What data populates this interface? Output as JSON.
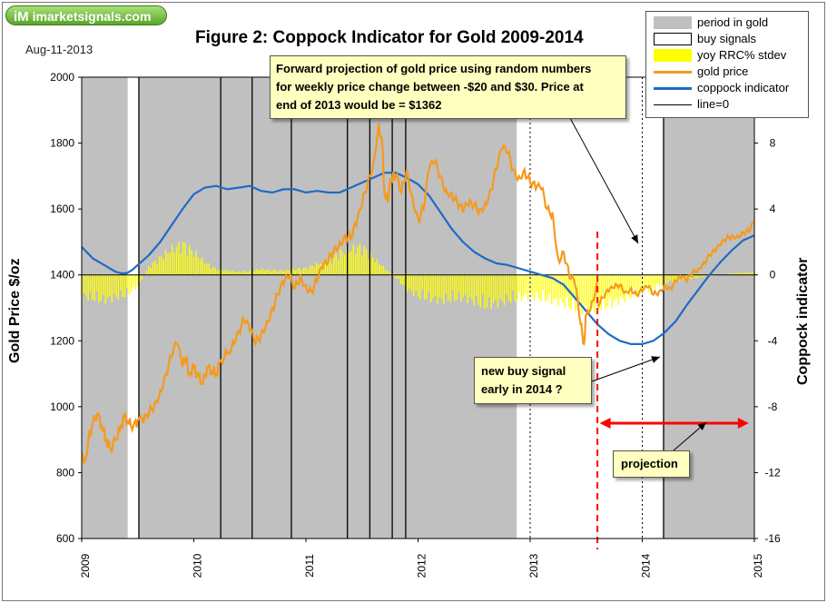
{
  "branding": {
    "logo_text": "imarketsignals.com",
    "logo_mark": "iM"
  },
  "date_text": "Aug-11-2013",
  "legend": {
    "period_in_gold": "period in gold",
    "buy_signals": "buy signals",
    "yoy": "yoy RRC% stdev",
    "gold_price": "gold price",
    "coppock": "coppock indicator",
    "line0": "line=0"
  },
  "annotations": {
    "forward": [
      "Forward projection of gold price using random numbers",
      "for weekly price change between -$20 and $30.  Price at",
      "end of 2013 would be = $1362"
    ],
    "buy": [
      "new buy signal",
      "early in 2014 ?"
    ],
    "projection": "projection"
  },
  "colors": {
    "period": "#c0c0c0",
    "gold": "#f59a1e",
    "coppock": "#1f6bc4",
    "yoy": "#ffff00",
    "projection_marker": "#ff0000"
  },
  "chart_data": {
    "type": "line",
    "title": "Figure 2:  Coppock Indicator for Gold  2009-2014",
    "xlabel": "",
    "ylabel_left": "Gold Price  $/oz",
    "ylabel_right": "Coppock indicator",
    "xlim": [
      2009,
      2015
    ],
    "ylim_left": [
      600,
      2000
    ],
    "ylim_right": [
      -16,
      12
    ],
    "x_ticks": [
      2009,
      2010,
      2011,
      2012,
      2013,
      2014,
      2015
    ],
    "y_ticks_left": [
      600,
      800,
      1000,
      1200,
      1400,
      1600,
      1800,
      2000
    ],
    "y_ticks_right": [
      -16,
      -12,
      -8,
      -4,
      0,
      4,
      8
    ],
    "periods_in_gold": [
      [
        2009.0,
        2009.41
      ],
      [
        2009.51,
        2012.88
      ],
      [
        2014.19,
        2015.0
      ]
    ],
    "buy_signals": [
      2009.51,
      2010.24,
      2010.52,
      2010.87,
      2011.37,
      2011.57,
      2011.77,
      2011.89,
      2014.19
    ],
    "gold_price": {
      "x": [
        2009.0,
        2009.03,
        2009.06,
        2009.1,
        2009.14,
        2009.18,
        2009.22,
        2009.26,
        2009.3,
        2009.34,
        2009.38,
        2009.42,
        2009.46,
        2009.5,
        2009.55,
        2009.6,
        2009.65,
        2009.7,
        2009.75,
        2009.8,
        2009.85,
        2009.9,
        2009.93,
        2009.96,
        2010.0,
        2010.04,
        2010.08,
        2010.12,
        2010.16,
        2010.2,
        2010.24,
        2010.3,
        2010.35,
        2010.4,
        2010.45,
        2010.5,
        2010.55,
        2010.6,
        2010.65,
        2010.7,
        2010.75,
        2010.8,
        2010.85,
        2010.9,
        2010.95,
        2011.0,
        2011.05,
        2011.1,
        2011.15,
        2011.2,
        2011.25,
        2011.3,
        2011.35,
        2011.4,
        2011.45,
        2011.5,
        2011.55,
        2011.6,
        2011.65,
        2011.68,
        2011.7,
        2011.73,
        2011.76,
        2011.8,
        2011.85,
        2011.9,
        2011.95,
        2012.0,
        2012.05,
        2012.1,
        2012.15,
        2012.2,
        2012.25,
        2012.3,
        2012.35,
        2012.4,
        2012.45,
        2012.5,
        2012.55,
        2012.6,
        2012.65,
        2012.7,
        2012.75,
        2012.8,
        2012.85,
        2012.9,
        2012.95,
        2013.0,
        2013.05,
        2013.1,
        2013.15,
        2013.2,
        2013.25,
        2013.3,
        2013.35,
        2013.4,
        2013.45,
        2013.48,
        2013.5,
        2013.55,
        2013.6
      ],
      "y": [
        860,
        840,
        900,
        950,
        980,
        940,
        900,
        870,
        900,
        930,
        970,
        950,
        940,
        960,
        950,
        980,
        1010,
        1050,
        1100,
        1150,
        1190,
        1120,
        1150,
        1100,
        1120,
        1090,
        1070,
        1120,
        1110,
        1100,
        1140,
        1160,
        1200,
        1230,
        1260,
        1230,
        1190,
        1220,
        1260,
        1300,
        1340,
        1370,
        1390,
        1360,
        1400,
        1370,
        1350,
        1380,
        1420,
        1440,
        1480,
        1500,
        1520,
        1510,
        1550,
        1610,
        1680,
        1740,
        1860,
        1800,
        1650,
        1620,
        1690,
        1700,
        1650,
        1720,
        1640,
        1570,
        1600,
        1720,
        1740,
        1700,
        1660,
        1650,
        1620,
        1590,
        1610,
        1610,
        1600,
        1620,
        1660,
        1720,
        1780,
        1770,
        1720,
        1700,
        1720,
        1680,
        1660,
        1660,
        1600,
        1590,
        1450,
        1470,
        1390,
        1370,
        1250,
        1190,
        1280,
        1320,
        1380
      ]
    },
    "gold_projection": {
      "x": [
        2013.6,
        2013.65,
        2013.7,
        2013.75,
        2013.8,
        2013.85,
        2013.9,
        2013.95,
        2014.0,
        2014.05,
        2014.1,
        2014.15,
        2014.2,
        2014.25,
        2014.3,
        2014.35,
        2014.4,
        2014.45,
        2014.5,
        2014.55,
        2014.6,
        2014.65,
        2014.7,
        2014.75,
        2014.8,
        2014.85,
        2014.9,
        2014.95,
        2015.0
      ],
      "y": [
        1310,
        1330,
        1350,
        1360,
        1370,
        1350,
        1360,
        1340,
        1350,
        1362,
        1340,
        1350,
        1370,
        1360,
        1380,
        1390,
        1380,
        1410,
        1420,
        1440,
        1460,
        1470,
        1490,
        1510,
        1520,
        1520,
        1530,
        1530,
        1560
      ]
    },
    "coppock": {
      "x": [
        2009.0,
        2009.1,
        2009.2,
        2009.3,
        2009.35,
        2009.4,
        2009.45,
        2009.5,
        2009.6,
        2009.7,
        2009.8,
        2009.9,
        2010.0,
        2010.1,
        2010.2,
        2010.3,
        2010.4,
        2010.5,
        2010.6,
        2010.7,
        2010.8,
        2010.9,
        2011.0,
        2011.1,
        2011.2,
        2011.3,
        2011.4,
        2011.5,
        2011.6,
        2011.7,
        2011.8,
        2011.9,
        2012.0,
        2012.1,
        2012.2,
        2012.3,
        2012.4,
        2012.5,
        2012.6,
        2012.7,
        2012.8,
        2012.9,
        2013.0,
        2013.1,
        2013.2,
        2013.3,
        2013.4,
        2013.5,
        2013.6,
        2013.7,
        2013.8,
        2013.9,
        2014.0,
        2014.1,
        2014.2,
        2014.3,
        2014.4,
        2014.5,
        2014.6,
        2014.7,
        2014.8,
        2014.9,
        2015.0
      ],
      "y": [
        1.7,
        1.0,
        0.6,
        0.2,
        0.1,
        0.1,
        0.3,
        0.6,
        1.2,
        2.0,
        3.0,
        4.0,
        4.9,
        5.3,
        5.4,
        5.2,
        5.3,
        5.4,
        5.1,
        5.0,
        5.2,
        5.2,
        5.0,
        5.1,
        5.0,
        5.0,
        5.3,
        5.6,
        5.9,
        6.2,
        6.2,
        5.9,
        5.5,
        4.8,
        3.8,
        2.8,
        2.0,
        1.4,
        1.0,
        0.7,
        0.6,
        0.4,
        0.2,
        0.0,
        -0.2,
        -0.6,
        -1.4,
        -2.2,
        -3.0,
        -3.6,
        -4.0,
        -4.2,
        -4.2,
        -4.0,
        -3.5,
        -2.8,
        -1.8,
        -0.9,
        0.0,
        0.8,
        1.5,
        2.1,
        2.4
      ]
    },
    "yoy_rrc_stdev": {
      "x": [
        2009.0,
        2009.2,
        2009.4,
        2009.5,
        2009.6,
        2009.7,
        2009.8,
        2009.9,
        2010.0,
        2010.1,
        2010.2,
        2010.4,
        2010.6,
        2010.8,
        2011.0,
        2011.2,
        2011.3,
        2011.5,
        2011.6,
        2011.7,
        2011.8,
        2011.9,
        2012.0,
        2012.2,
        2012.4,
        2012.6,
        2012.8,
        2013.0,
        2013.2,
        2013.3,
        2013.4,
        2013.5,
        2013.6,
        2013.7,
        2013.8,
        2013.9,
        2014.0,
        2014.1,
        2014.2,
        2014.3,
        2014.4,
        2014.5,
        2014.6,
        2014.8,
        2015.0
      ],
      "y": [
        -1.5,
        -1.8,
        -1.4,
        -0.8,
        0.6,
        1.2,
        1.8,
        2.2,
        1.6,
        0.9,
        0.4,
        0.2,
        0.4,
        0.3,
        0.5,
        1.0,
        1.6,
        2.0,
        1.2,
        0.5,
        -0.2,
        -1.0,
        -1.5,
        -1.8,
        -1.6,
        -2.2,
        -1.8,
        -1.5,
        -1.8,
        -2.0,
        -2.3,
        -2.5,
        -2.3,
        -2.1,
        -1.8,
        -1.5,
        -1.2,
        -0.9,
        -0.6,
        -0.4,
        -0.3,
        -0.2,
        -0.1,
        0.1,
        0.2
      ]
    },
    "projection_start": 2013.6,
    "projection_range": [
      2013.62,
      2014.95
    ],
    "projection_level": -9,
    "dotted_markers": [
      2013.0,
      2014.0
    ]
  }
}
